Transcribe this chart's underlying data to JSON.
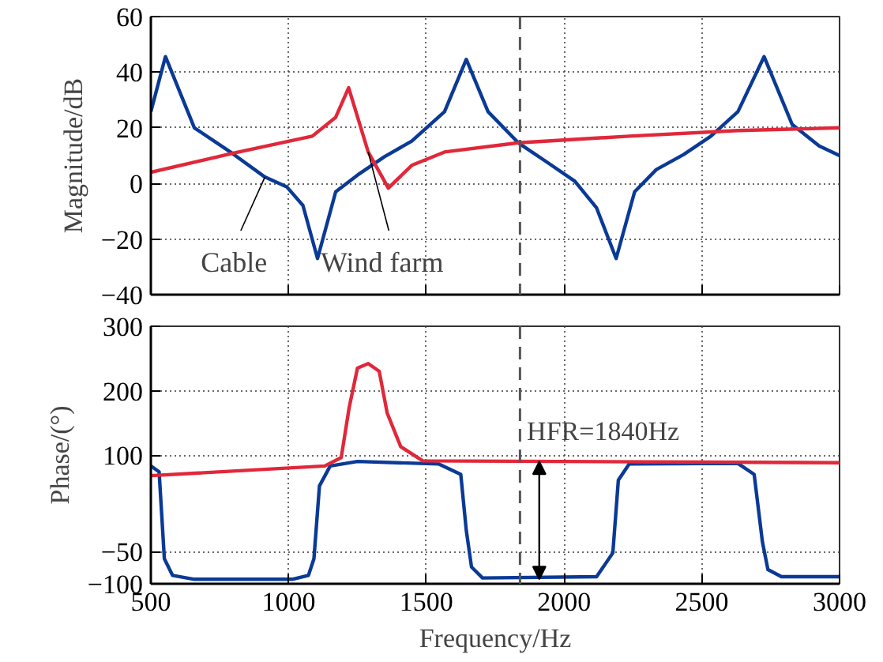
{
  "chart_data": [
    {
      "type": "line",
      "ylabel": "Magnitude/dB",
      "xlim": [
        500,
        3000
      ],
      "xticks": [
        500,
        1000,
        1500,
        2000,
        2500,
        3000
      ],
      "ylim": [
        -40,
        60
      ],
      "yticks": [
        -40,
        -20,
        0,
        20,
        40,
        60
      ],
      "grid": true,
      "legend": false,
      "tick_labels": "y",
      "series": [
        {
          "name": "Cable",
          "color": "#0a3a96",
          "x": [
            500,
            553,
            658,
            796,
            914,
            993,
            1052,
            1105,
            1171,
            1250,
            1348,
            1447,
            1566,
            1645,
            1724,
            1834,
            1940,
            2039,
            2118,
            2189,
            2256,
            2335,
            2434,
            2533,
            2631,
            2726,
            2828,
            2926,
            3000
          ],
          "values": [
            25.8,
            45.6,
            20,
            10.8,
            2.3,
            -1.2,
            -7.9,
            -27,
            -3,
            3,
            9.6,
            15.2,
            25.8,
            44.6,
            25.8,
            14.6,
            7.5,
            0.8,
            -8.8,
            -27,
            -3,
            5,
            10.4,
            17,
            25.8,
            45.6,
            21.2,
            13.5,
            10
          ]
        },
        {
          "name": "Wind farm",
          "color": "#e0283a",
          "x": [
            500,
            796,
            1086,
            1171,
            1218,
            1289,
            1362,
            1447,
            1566,
            1834,
            2236,
            2631,
            3000
          ],
          "values": [
            4,
            10.8,
            17,
            23.8,
            34.4,
            11.3,
            -1.7,
            6.5,
            11.3,
            14.6,
            17,
            19,
            20
          ]
        }
      ],
      "ref_lines": [
        {
          "axis": "x",
          "value": 1840,
          "color": "#555555",
          "line_style": "dashed"
        }
      ]
    },
    {
      "type": "line",
      "xlabel": "Frequency/Hz",
      "ylabel": "Phase/(°)",
      "xlim": [
        500,
        3000
      ],
      "xticks": [
        500,
        1000,
        1500,
        2000,
        2500,
        3000
      ],
      "ylim": [
        -100,
        300
      ],
      "yticks": [
        -100,
        -50,
        100,
        200,
        300
      ],
      "grid": true,
      "legend": false,
      "series": [
        {
          "color": "#0a3a96",
          "x": [
            500,
            530,
            549,
            579,
            658,
            1013,
            1072,
            1092,
            1112,
            1151,
            1250,
            1546,
            1625,
            1645,
            1664,
            1704,
            2118,
            2177,
            2197,
            2236,
            2631,
            2690,
            2720,
            2740,
            2789,
            3000
          ],
          "values": [
            83,
            74,
            -61,
            -87,
            -93,
            -93,
            -87,
            -61,
            52,
            83,
            90,
            86,
            70,
            -17,
            -74,
            -91,
            -89,
            -52,
            61,
            86,
            87,
            70,
            -35,
            -78,
            -89,
            -89
          ]
        },
        {
          "color": "#e0283a",
          "x": [
            500,
            1131,
            1191,
            1220,
            1250,
            1289,
            1329,
            1358,
            1407,
            1487,
            3000
          ],
          "values": [
            68,
            83,
            96,
            174,
            235,
            242,
            230,
            165,
            113,
            91,
            88
          ]
        }
      ],
      "ref_lines": [
        {
          "axis": "x",
          "value": 1840,
          "color": "#555555",
          "line_style": "dashed"
        }
      ],
      "annotations": [
        {
          "text": "HFR=1840Hz",
          "x": 1840,
          "y": 90
        }
      ]
    }
  ]
}
